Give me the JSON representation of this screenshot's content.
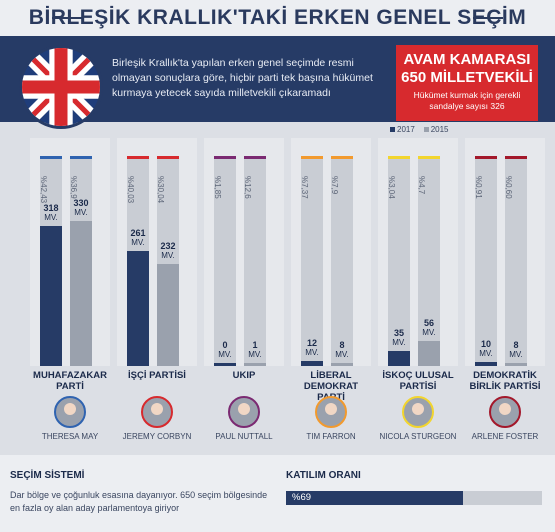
{
  "title": "BİRLEŞİK KRALLIK'TAKİ ERKEN GENEL SEÇİM",
  "intro": "Birleşik Krallık'ta yapılan erken genel seçimde resmi olmayan sonuçlara göre, hiçbir parti tek başına hükümet kurmaya yetecek sayıda milletvekili çıkaramadı",
  "house": {
    "line1": "AVAM KAMARASI",
    "line2": "650 MİLLETVEKİLİ",
    "line3": "Hükümet kurmak için gerekli sandalye sayısı 326"
  },
  "legend": {
    "y2017": "2017",
    "y2015": "2015",
    "c2017": "#263b66",
    "c2015": "#9aa1ad"
  },
  "mv_unit": "MV.",
  "chart_data": {
    "type": "bar",
    "categories": [
      "MUHAFAZAKAR PARTİ",
      "İŞÇİ PARTİSİ",
      "UKIP",
      "LİBERAL DEMOKRAT PARTİ",
      "İSKOÇ ULUSAL PARTİSİ",
      "DEMOKRATİK BİRLİK PARTİSİ"
    ],
    "series": [
      {
        "name": "2017",
        "seats": [
          318,
          261,
          0,
          12,
          35,
          10
        ],
        "percent": [
          "%42,43",
          "%40,03",
          "%1,85",
          "%7,37",
          "%3,04",
          "%0,91"
        ]
      },
      {
        "name": "2015",
        "seats": [
          330,
          232,
          1,
          8,
          56,
          8
        ],
        "percent": [
          "%36,9",
          "%30,04",
          "%12,6",
          "%7,9",
          "%4,7",
          "%0,60"
        ]
      }
    ],
    "ylim": [
      0,
      330
    ]
  },
  "parties": [
    {
      "name": "MUHAFAZAKAR\nPARTİ",
      "leader": "THERESA MAY",
      "color": "#2f63b0"
    },
    {
      "name": "İŞÇİ PARTİSİ",
      "leader": "JEREMY CORBYN",
      "color": "#d72a2e"
    },
    {
      "name": "UKIP",
      "leader": "PAUL NUTTALL",
      "color": "#7b2a72"
    },
    {
      "name": "LİBERAL\nDEMOKRAT PARTİ",
      "leader": "TIM FARRON",
      "color": "#f29a2e"
    },
    {
      "name": "İSKOÇ ULUSAL\nPARTİSİ",
      "leader": "NICOLA STURGEON",
      "color": "#f2d52e"
    },
    {
      "name": "DEMOKRATİK\nBİRLİK PARTİSİ",
      "leader": "ARLENE FOSTER",
      "color": "#a3182b"
    }
  ],
  "system": {
    "title": "SEÇİM SİSTEMİ",
    "text": "Dar bölge ve çoğunluk esasına dayanıyor. 650 seçim bölgesinde en fazla oy alan aday parlamentoya giriyor"
  },
  "turnout": {
    "title": "KATILIM ORANI",
    "label": "%69",
    "value": 0.69
  }
}
